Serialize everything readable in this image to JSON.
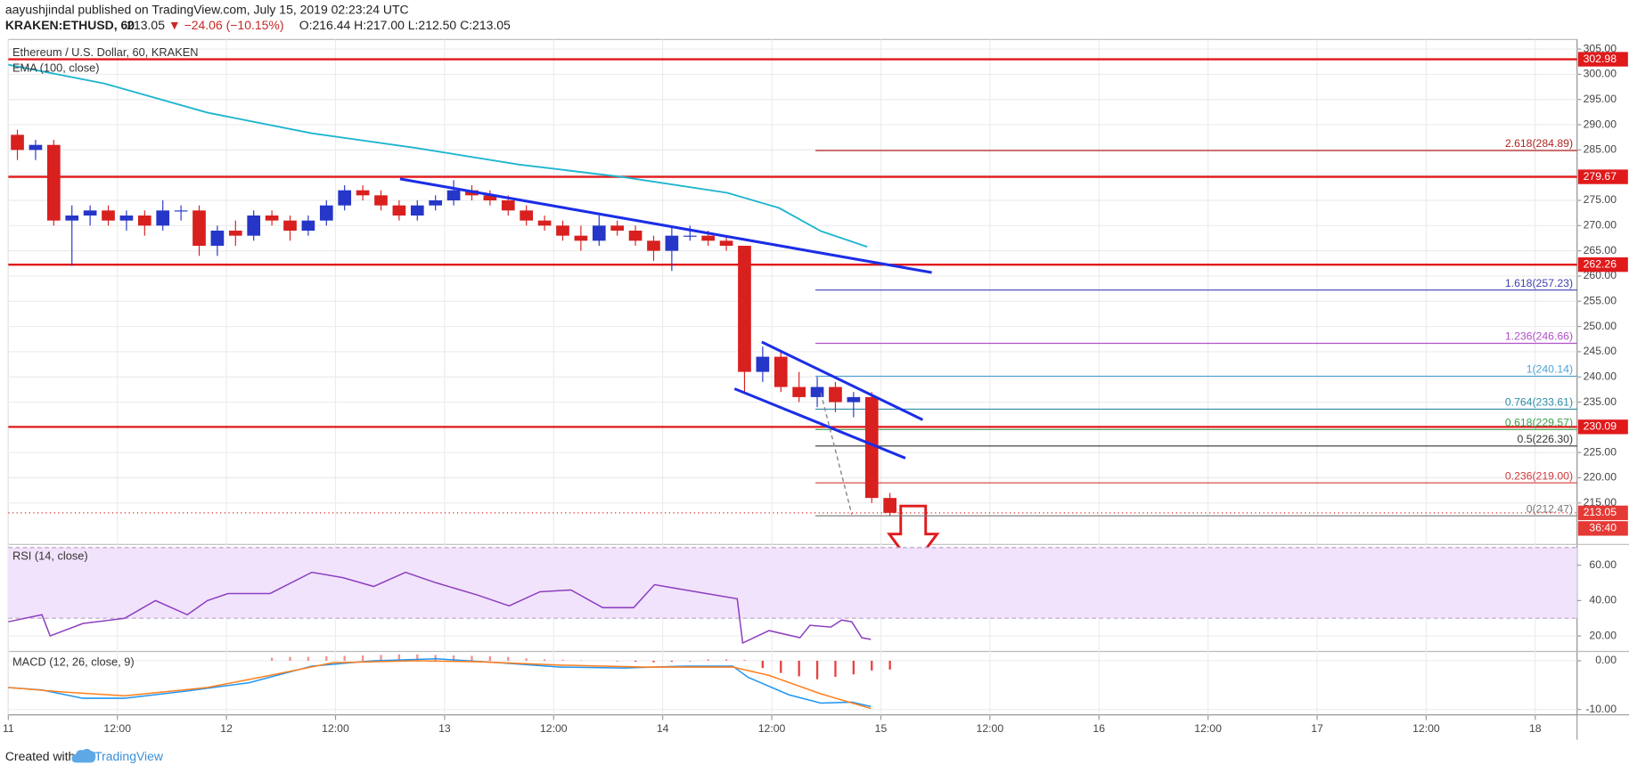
{
  "header": {
    "publisher": "aayushjindal published on TradingView.com, July 15, 2019 02:23:24 UTC",
    "symbol": "KRAKEN:ETHUSD, 60",
    "last": "213.05",
    "change": "▼ −24.06 (−10.15%)",
    "ohlc": "O:216.44 H:217.00 L:212.50 C:213.05"
  },
  "footer": {
    "created": "Created with",
    "brand": "TradingView"
  },
  "chart_data": [
    {
      "type": "candlestick",
      "title": "Ethereum / U.S. Dollar, 60, KRAKEN",
      "up_color": "#2536c8",
      "down_color": "#d8201f",
      "x": [
        1,
        3,
        5,
        7,
        9,
        11,
        13,
        15,
        17,
        19,
        21,
        23,
        25,
        27,
        29,
        31,
        33,
        35,
        37,
        39,
        41,
        43,
        45,
        47,
        49,
        51,
        53,
        55,
        57,
        59,
        61,
        63,
        65,
        67,
        69,
        71,
        73,
        75,
        77,
        79,
        81,
        83,
        85,
        87,
        89,
        91,
        93,
        95,
        97
      ],
      "open": [
        288,
        285,
        286,
        271,
        272,
        273,
        271,
        272,
        270,
        273,
        273,
        266,
        269,
        268,
        272,
        271,
        269,
        271,
        274,
        277,
        276,
        274,
        272,
        274,
        275,
        277,
        276,
        275,
        273,
        271,
        270,
        268,
        267,
        270,
        269,
        267,
        265,
        268,
        268,
        267,
        266,
        241,
        244,
        238,
        236,
        238,
        235,
        236,
        216
      ],
      "high": [
        289,
        287,
        287,
        274,
        274,
        274,
        273,
        273,
        275,
        274,
        274,
        270,
        271,
        273,
        273,
        272,
        272,
        275,
        278,
        278,
        277,
        275,
        275,
        276,
        279,
        278,
        277,
        276,
        274,
        272,
        271,
        270,
        272,
        271,
        270,
        268,
        270,
        270,
        269,
        268,
        266,
        246,
        245,
        241,
        240,
        239,
        237,
        237,
        217
      ],
      "low": [
        283,
        283,
        270,
        262,
        270,
        270,
        269,
        268,
        269,
        271,
        264,
        264,
        266,
        267,
        270,
        267,
        268,
        270,
        273,
        275,
        273,
        271,
        271,
        273,
        274,
        275,
        274,
        272,
        270,
        269,
        267,
        265,
        266,
        268,
        266,
        263,
        261,
        267,
        266,
        265,
        237,
        239,
        237,
        235,
        234,
        233,
        232,
        215,
        212.5
      ],
      "close": [
        285,
        286,
        271,
        272,
        273,
        271,
        272,
        270,
        273,
        273,
        266,
        269,
        268,
        272,
        271,
        269,
        271,
        274,
        277,
        276,
        274,
        272,
        274,
        275,
        277,
        276,
        275,
        273,
        271,
        270,
        268,
        267,
        270,
        269,
        267,
        265,
        268,
        268,
        267,
        266,
        241,
        244,
        238,
        236,
        238,
        235,
        236,
        216,
        213.05
      ],
      "xlim": [
        0,
        172.6
      ],
      "xticks": [
        {
          "value": 0,
          "label": "11"
        },
        {
          "value": 12,
          "label": "12:00"
        },
        {
          "value": 24,
          "label": "12"
        },
        {
          "value": 36,
          "label": "12:00"
        },
        {
          "value": 48,
          "label": "13"
        },
        {
          "value": 60,
          "label": "12:00"
        },
        {
          "value": 72,
          "label": "14"
        },
        {
          "value": 84,
          "label": "12:00"
        },
        {
          "value": 96,
          "label": "15"
        },
        {
          "value": 108,
          "label": "12:00"
        },
        {
          "value": 120,
          "label": "16"
        },
        {
          "value": 132,
          "label": "12:00"
        },
        {
          "value": 144,
          "label": "17"
        },
        {
          "value": 156,
          "label": "12:00"
        },
        {
          "value": 168,
          "label": "18"
        }
      ],
      "ylim": [
        207.2,
        306.9
      ],
      "yticks": [
        {
          "value": 215,
          "label": "215.00"
        },
        {
          "value": 220,
          "label": "220.00"
        },
        {
          "value": 225,
          "label": "225.00"
        },
        {
          "value": 230,
          "label": "230.00"
        },
        {
          "value": 235,
          "label": "235.00"
        },
        {
          "value": 240,
          "label": "240.00"
        },
        {
          "value": 245,
          "label": "245.00"
        },
        {
          "value": 250,
          "label": "250.00"
        },
        {
          "value": 255,
          "label": "255.00"
        },
        {
          "value": 260,
          "label": "260.00"
        },
        {
          "value": 265,
          "label": "265.00"
        },
        {
          "value": 270,
          "label": "270.00"
        },
        {
          "value": 275,
          "label": "275.00"
        },
        {
          "value": 280,
          "label": "280.00"
        },
        {
          "value": 285,
          "label": "285.00"
        },
        {
          "value": 290,
          "label": "290.00"
        },
        {
          "value": 295,
          "label": "295.00"
        },
        {
          "value": 300,
          "label": "300.00"
        },
        {
          "value": 305,
          "label": "305.00"
        }
      ],
      "grid": true,
      "overlays": [
        {
          "name": "EMA (100, close)",
          "color": "#1fb5cf",
          "x": [
            0,
            10.5,
            21.9,
            33.4,
            44.8,
            56.2,
            67.7,
            79.1,
            84.8,
            89.4,
            94.5
          ],
          "values": [
            301.9,
            298.2,
            292.4,
            288.3,
            285.4,
            282.1,
            279.6,
            276.5,
            273.5,
            268.9,
            265.8
          ]
        }
      ],
      "levels": [
        {
          "value": 302.98,
          "color": "#e0191b"
        },
        {
          "value": 279.67,
          "color": "#e0191b"
        },
        {
          "value": 262.26,
          "color": "#e0191b"
        },
        {
          "value": 230.09,
          "color": "#e0191b"
        }
      ],
      "fib_start": 88.8,
      "fib_levels": [
        {
          "value": 284.89,
          "label": "2.618(284.89)",
          "color": "#b22222"
        },
        {
          "value": 257.23,
          "label": "1.618(257.23)",
          "color": "#3f3fb0"
        },
        {
          "value": 246.66,
          "label": "1.236(246.66)",
          "color": "#b050c8"
        },
        {
          "value": 240.14,
          "label": "1(240.14)",
          "color": "#4fa3d8"
        },
        {
          "value": 233.61,
          "label": "0.764(233.61)",
          "color": "#2f8fa8"
        },
        {
          "value": 229.57,
          "label": "0.618(229.57)",
          "color": "#3aa04a"
        },
        {
          "value": 226.3,
          "label": "0.5(226.30)",
          "color": "#333333"
        },
        {
          "value": 219,
          "label": "0.236(219.00)",
          "color": "#d23a3a"
        },
        {
          "value": 212.47,
          "label": "0(212.47)",
          "color": "#777777"
        }
      ],
      "trendlines": [
        {
          "x": [
            43.1,
            101.6
          ],
          "values": [
            279.26,
            260.7
          ],
          "color": "#1b2ee6",
          "dashed": false
        },
        {
          "x": [
            82.9,
            100.6
          ],
          "values": [
            246.93,
            231.5
          ],
          "color": "#1b2ee6",
          "dashed": false
        },
        {
          "x": [
            79.9,
            98.7
          ],
          "values": [
            237.66,
            223.9
          ],
          "color": "#1b2ee6",
          "dashed": false
        },
        {
          "x": [
            89.4,
            92.8
          ],
          "values": [
            236.8,
            212.75
          ],
          "color": "#888888",
          "dashed": true
        }
      ],
      "last_price": 213.05,
      "countdown": "36:40"
    },
    {
      "type": "line",
      "title": "RSI (14, close)",
      "series": [
        {
          "color": "#8d3fbf",
          "x": [
            0,
            3.7,
            4.6,
            8.2,
            12.8,
            16.2,
            19.7,
            21.9,
            24.2,
            28.8,
            33.4,
            36.8,
            40.2,
            43.7,
            47.1,
            51.7,
            55.1,
            58.5,
            61.9,
            65.4,
            68.8,
            71.1,
            74.5,
            77.9,
            80.2,
            80.8,
            83.7,
            87.1,
            88.2,
            90.5,
            91.7,
            92.8,
            93.9,
            94.9
          ],
          "values": [
            28,
            32,
            20,
            27,
            30,
            40,
            32,
            40,
            44,
            44,
            56,
            53,
            48,
            56,
            50,
            43,
            37,
            45,
            46,
            36,
            36,
            49,
            46,
            43,
            41,
            16,
            23,
            19,
            26,
            25,
            29,
            28,
            19,
            18
          ]
        }
      ],
      "band": [
        30,
        70
      ],
      "band_color": "#f1e3fb",
      "ylim": [
        11.8,
        70.6
      ],
      "yticks": [
        {
          "value": 20,
          "label": "20.00"
        },
        {
          "value": 40,
          "label": "40.00"
        },
        {
          "value": 60,
          "label": "60.00"
        }
      ]
    },
    {
      "type": "line",
      "title": "MACD (12, 26, close, 9)",
      "series": [
        {
          "color": "#2196f3",
          "x": [
            0,
            3.7,
            8.2,
            12.8,
            19.7,
            26.5,
            33.4,
            40.2,
            47.1,
            53.9,
            60.8,
            67.7,
            74.5,
            79.7,
            81.4,
            85.9,
            89.4,
            92.8,
            94.9
          ],
          "values": [
            -5.5,
            -6,
            -7.7,
            -7.7,
            -6.2,
            -4.5,
            -1.1,
            0,
            0.4,
            -0.4,
            -1.3,
            -1.5,
            -1.1,
            -1.1,
            -3.4,
            -7,
            -8.7,
            -8.5,
            -9.4
          ]
        },
        {
          "color": "#ff7f1e",
          "x": [
            0,
            6,
            12.8,
            21.9,
            28.8,
            35.7,
            44.8,
            51.7,
            60.8,
            69.9,
            79.7,
            83.7,
            89.4,
            94.9
          ],
          "values": [
            -5.5,
            -6.4,
            -7.2,
            -5.5,
            -3,
            -0.4,
            0,
            -0.2,
            -0.9,
            -1.3,
            -1.3,
            -3,
            -6.8,
            -9.8
          ]
        }
      ],
      "histogram": {
        "color": "#e53935",
        "x": [
          1,
          3,
          5,
          7,
          9,
          11,
          13,
          15,
          17,
          19,
          21,
          23,
          25,
          27,
          29,
          31,
          33,
          35,
          37,
          39,
          41,
          43,
          45,
          47,
          49,
          51,
          53,
          55,
          57,
          59,
          61,
          63,
          65,
          67,
          69,
          71,
          73,
          75,
          77,
          79,
          81,
          83,
          85,
          87,
          89,
          91,
          93,
          95,
          97
        ],
        "values": [
          0,
          0,
          0,
          0,
          0,
          0,
          0,
          0,
          0,
          0,
          0,
          0,
          0,
          0,
          0.6,
          0.8,
          0.8,
          0.9,
          1,
          1.1,
          1.2,
          1.3,
          1.3,
          1.2,
          1.1,
          1,
          0.9,
          0.8,
          0.5,
          0.3,
          0.2,
          0.1,
          0,
          -0.1,
          -0.2,
          -0.3,
          -0.2,
          -0.1,
          0.3,
          0.3,
          0.2,
          -1.5,
          -2.5,
          -3.2,
          -3.8,
          -3.3,
          -2.8,
          -2,
          -1.8
        ]
      },
      "ylim": [
        -11.1,
        1.7
      ],
      "yticks": [
        {
          "value": -10,
          "label": "-10.00"
        },
        {
          "value": 0,
          "label": "0.00"
        }
      ]
    }
  ]
}
